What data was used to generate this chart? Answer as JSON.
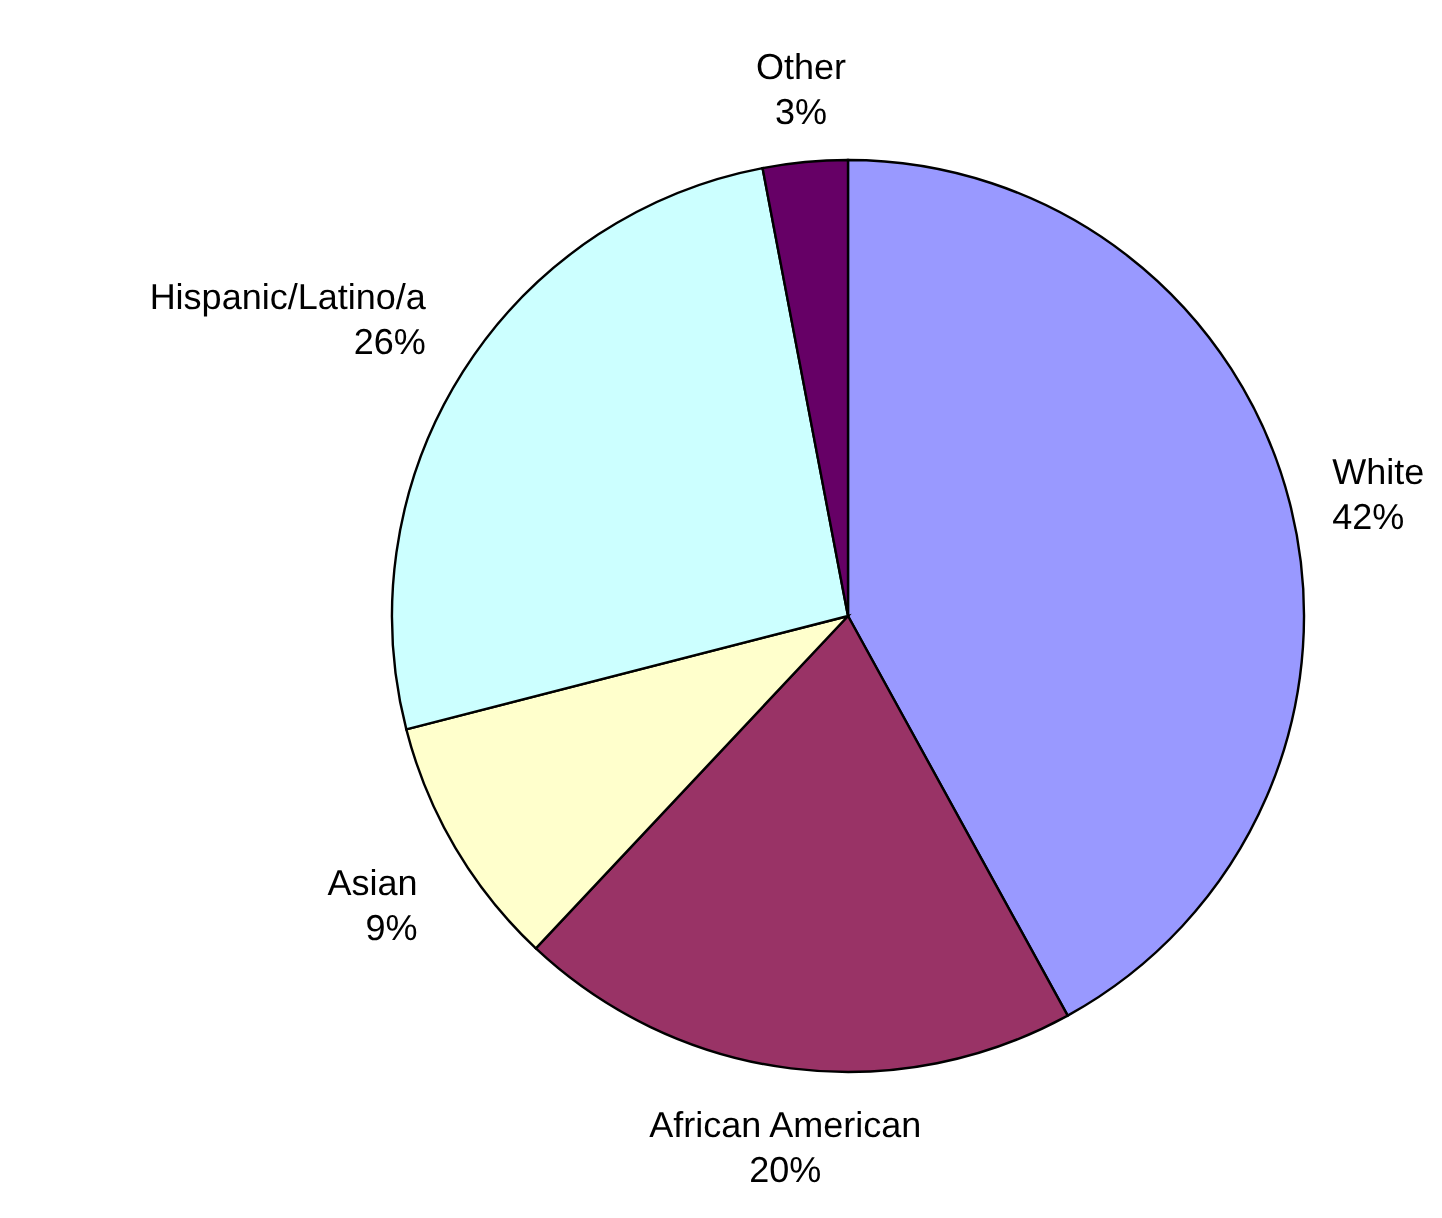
{
  "chart_data": {
    "type": "pie",
    "categories": [
      "White",
      "African American",
      "Asian",
      "Hispanic/Latino/a",
      "Other"
    ],
    "values": [
      42,
      20,
      9,
      26,
      3
    ],
    "value_labels": [
      "42%",
      "20%",
      "9%",
      "26%",
      "3%"
    ],
    "colors": [
      "#9999ff",
      "#993366",
      "#ffffcc",
      "#ccffff",
      "#660066"
    ],
    "legend": false
  }
}
